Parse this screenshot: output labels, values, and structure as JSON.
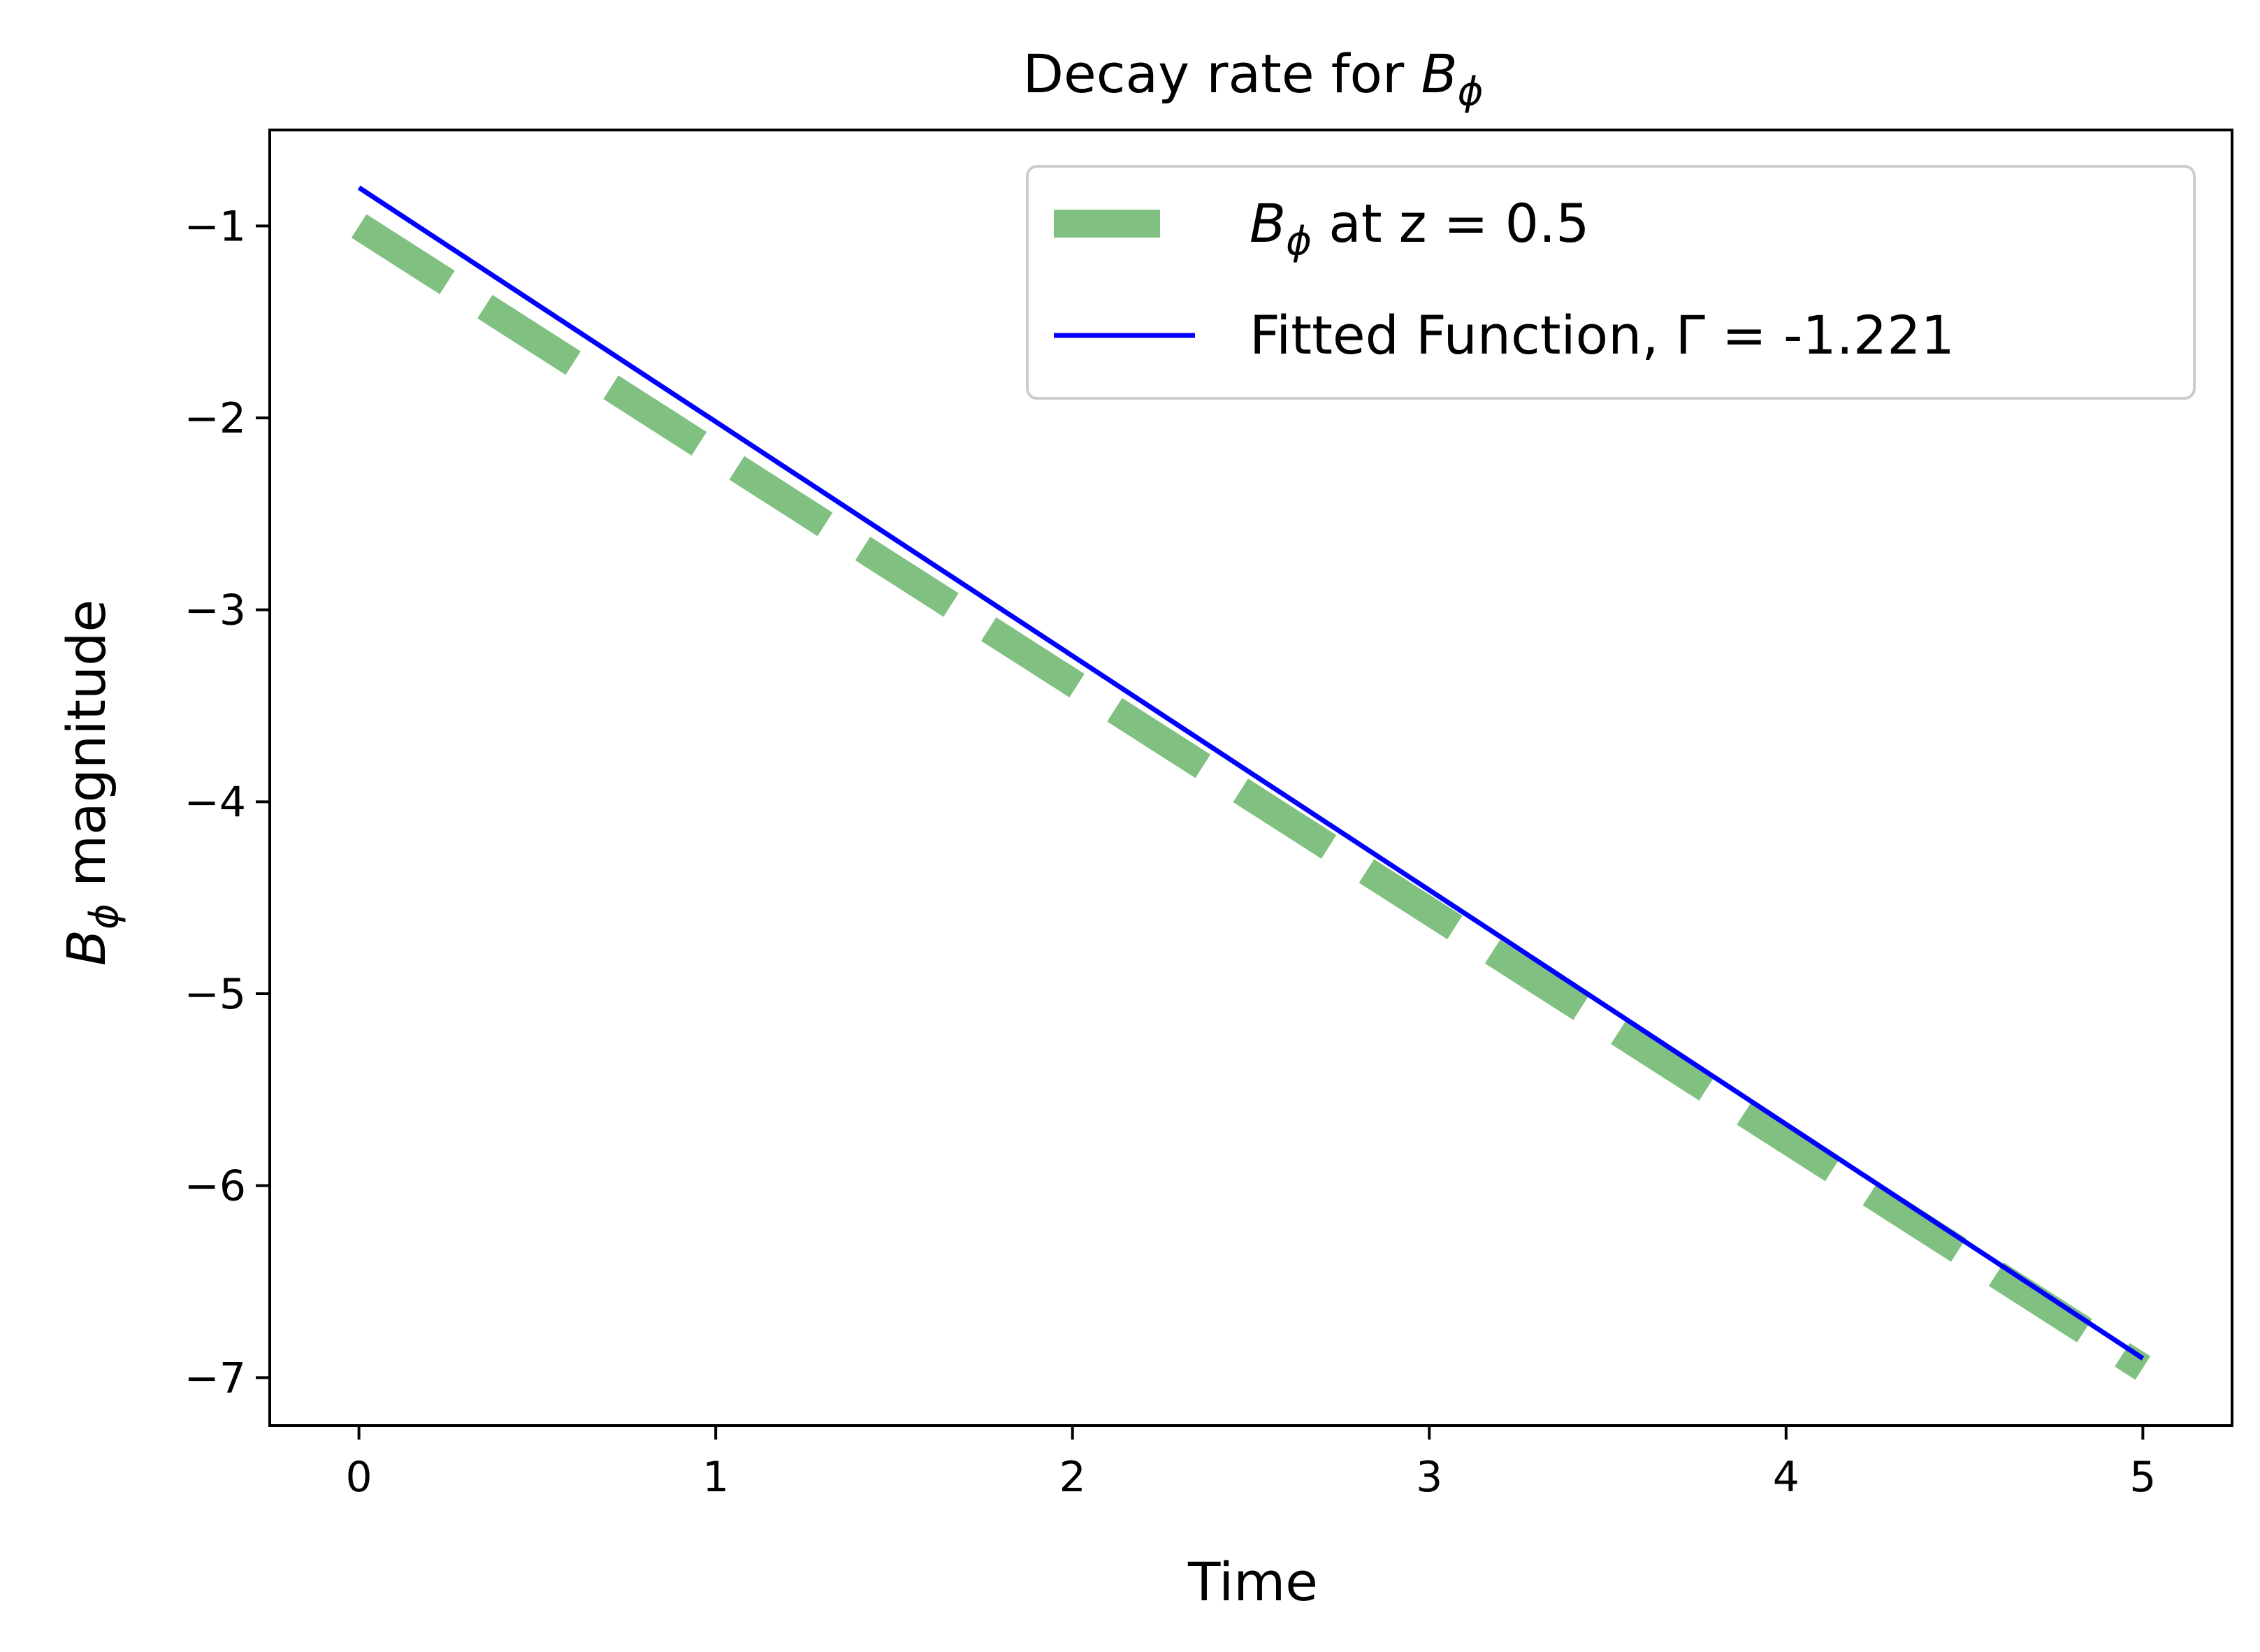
{
  "chart_data": {
    "type": "line",
    "title": {
      "text": "Decay rate for ",
      "math_base": "B",
      "math_sub": "ϕ"
    },
    "xlabel": "Time",
    "ylabel": {
      "math_base": "B",
      "math_sub": "ϕ",
      "text": " magnitude"
    },
    "xlim": [
      -0.25,
      5.25
    ],
    "ylim": [
      -7.25,
      -0.5
    ],
    "xticks": [
      0,
      1,
      2,
      3,
      4,
      5
    ],
    "xtick_labels": [
      "0",
      "1",
      "2",
      "3",
      "4",
      "5"
    ],
    "yticks": [
      -1,
      -2,
      -3,
      -4,
      -5,
      -6,
      -7
    ],
    "ytick_labels": [
      "−1",
      "−2",
      "−3",
      "−4",
      "−5",
      "−6",
      "−7"
    ],
    "grid": false,
    "legend_position": "top-right",
    "series": [
      {
        "name": {
          "math_base": "B",
          "math_sub": "ϕ",
          "text": " at z = 0.5"
        },
        "style": "dashed",
        "color": "#80c080",
        "x": [
          0,
          5
        ],
        "y": [
          -1.0,
          -6.95
        ]
      },
      {
        "name": {
          "text": "Fitted Function, Γ = -1.221"
        },
        "style": "solid",
        "color": "#0000ff",
        "x": [
          0,
          5
        ],
        "y": [
          -0.8,
          -6.9
        ]
      }
    ]
  }
}
